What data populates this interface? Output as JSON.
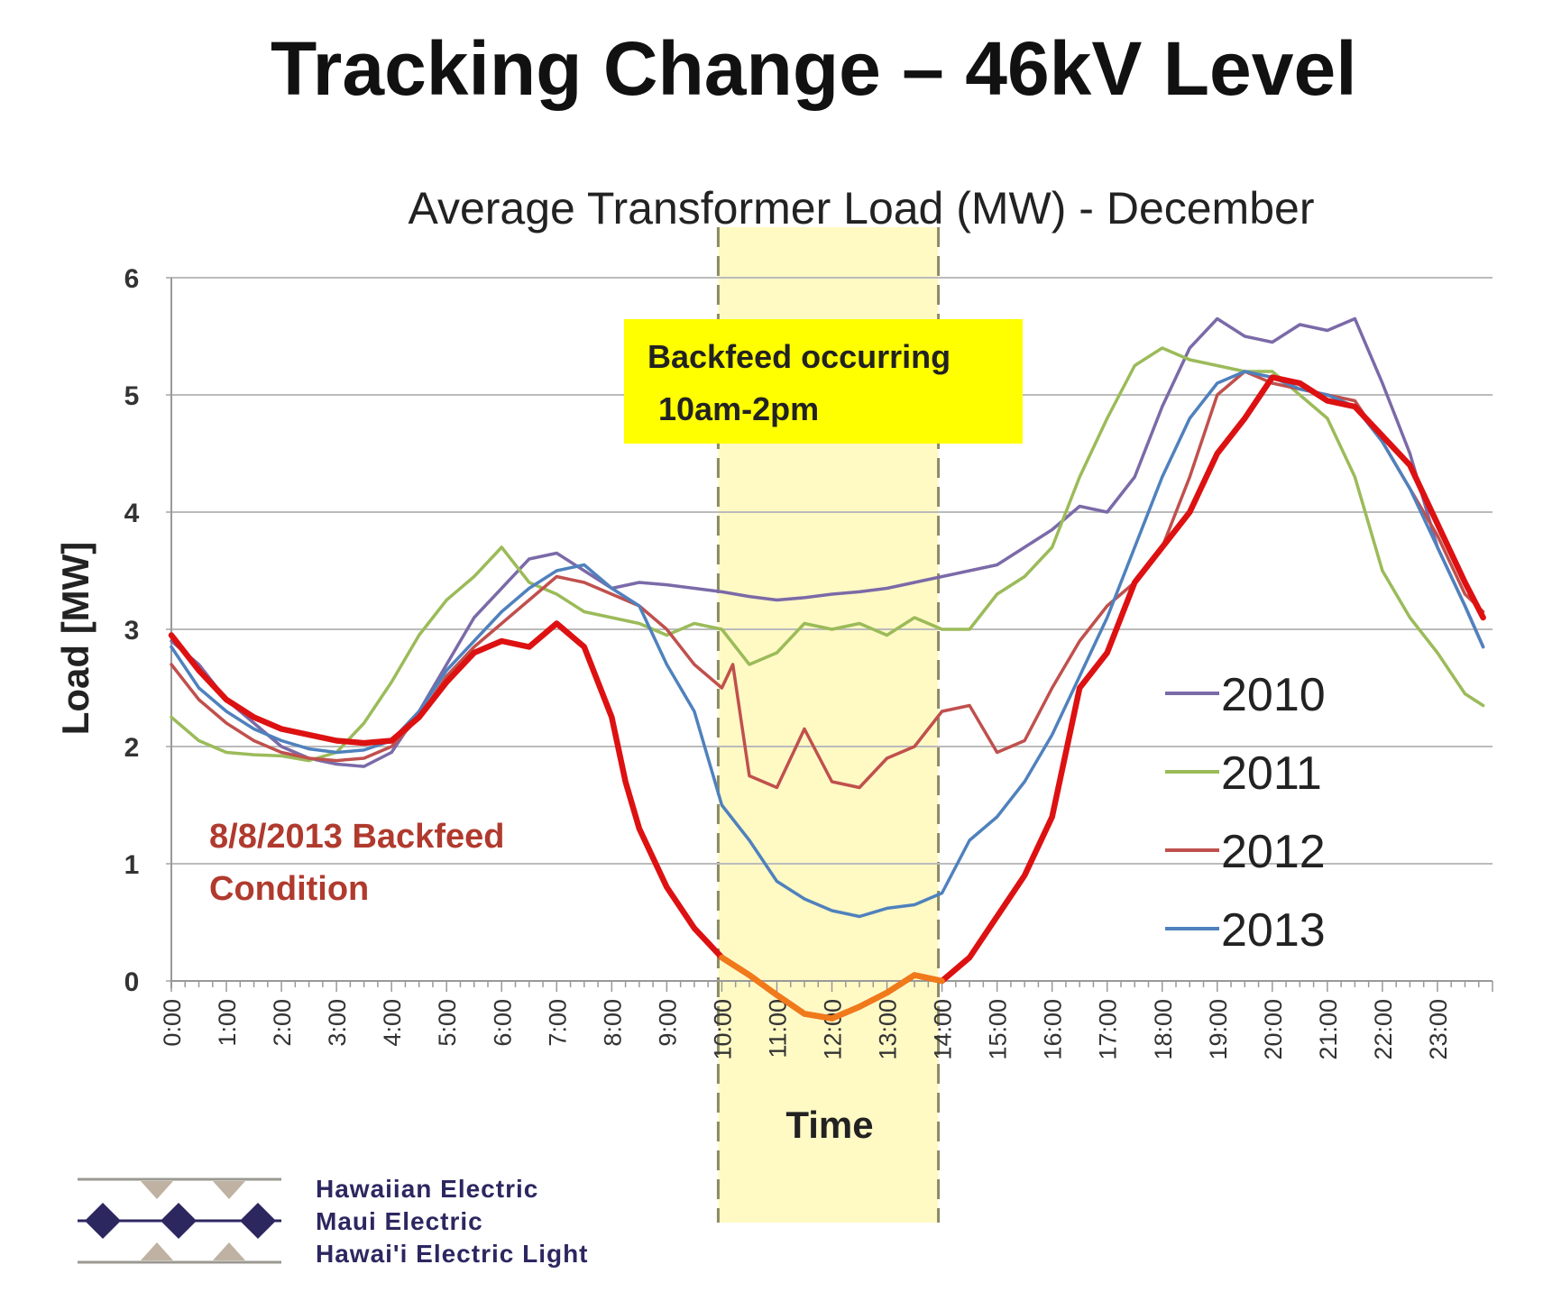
{
  "slide_title": "Tracking Change – 46kV Level",
  "colors": {
    "2010": "#7b6aa8",
    "2011": "#9bbb59",
    "2012": "#c0504d",
    "2013": "#4f81bd",
    "backfeed": "#dd1111",
    "backfeed_dip": "#f07a1a",
    "highlight": "#fff9c4",
    "annotation_box": "#ffff00",
    "grid": "#bbbbbb"
  },
  "annotations": {
    "backfeed_box_line1": "Backfeed occurring",
    "backfeed_box_line2": "10am-2pm",
    "condition_line1": "8/8/2013 Backfeed",
    "condition_line2": "Condition"
  },
  "logo": {
    "lines": [
      "Hawaiian Electric",
      "Maui Electric",
      "Hawai'i Electric Light"
    ]
  },
  "chart_data": {
    "type": "line",
    "title": "Average Transformer Load (MW) - December",
    "xlabel": "Time",
    "ylabel": "Load [MW]",
    "ylim": [
      0,
      6
    ],
    "yticks": [
      "0",
      "1",
      "2",
      "3",
      "4",
      "5",
      "6"
    ],
    "xlim": [
      0,
      23.83
    ],
    "categories": [
      "0:00",
      "1:00",
      "2:00",
      "3:00",
      "4:00",
      "5:00",
      "6:00",
      "7:00",
      "8:00",
      "9:00",
      "10:00",
      "11:00",
      "12:00",
      "13:00",
      "14:00",
      "15:00",
      "16:00",
      "17:00",
      "18:00",
      "19:00",
      "20:00",
      "21:00",
      "22:00",
      "23:00"
    ],
    "highlight_range_hours": [
      10,
      14
    ],
    "grid": true,
    "legend_position": "right",
    "series": [
      {
        "name": "2010",
        "x": [
          0,
          0.5,
          1,
          1.5,
          2,
          2.5,
          3,
          3.5,
          4,
          4.5,
          5,
          5.5,
          6,
          6.5,
          7,
          7.5,
          8,
          8.5,
          9,
          9.5,
          10,
          10.5,
          11,
          11.5,
          12,
          12.5,
          13,
          13.5,
          14,
          14.5,
          15,
          15.5,
          16,
          16.5,
          17,
          17.5,
          18,
          18.5,
          19,
          19.5,
          20,
          20.5,
          21,
          21.5,
          22,
          22.5,
          23,
          23.5,
          23.83
        ],
        "values": [
          2.9,
          2.7,
          2.4,
          2.2,
          2.0,
          1.9,
          1.85,
          1.83,
          1.95,
          2.3,
          2.7,
          3.1,
          3.35,
          3.6,
          3.65,
          3.5,
          3.35,
          3.4,
          3.38,
          3.35,
          3.32,
          3.28,
          3.25,
          3.27,
          3.3,
          3.32,
          3.35,
          3.4,
          3.45,
          3.5,
          3.55,
          3.7,
          3.85,
          4.05,
          4.0,
          4.3,
          4.9,
          5.4,
          5.65,
          5.5,
          5.45,
          5.6,
          5.55,
          5.65,
          5.1,
          4.5,
          3.7,
          3.2,
          2.85
        ]
      },
      {
        "name": "2011",
        "x": [
          0,
          0.5,
          1,
          1.5,
          2,
          2.5,
          3,
          3.5,
          4,
          4.5,
          5,
          5.5,
          6,
          6.5,
          7,
          7.5,
          8,
          8.5,
          9,
          9.5,
          10,
          10.5,
          11,
          11.5,
          12,
          12.5,
          13,
          13.5,
          14,
          14.5,
          15,
          15.5,
          16,
          16.5,
          17,
          17.5,
          18,
          18.5,
          19,
          19.5,
          20,
          20.5,
          21,
          21.5,
          22,
          22.5,
          23,
          23.5,
          23.83
        ],
        "values": [
          2.25,
          2.05,
          1.95,
          1.93,
          1.92,
          1.88,
          1.95,
          2.2,
          2.55,
          2.95,
          3.25,
          3.45,
          3.7,
          3.4,
          3.3,
          3.15,
          3.1,
          3.05,
          2.95,
          3.05,
          3.0,
          2.7,
          2.8,
          3.05,
          3.0,
          3.05,
          2.95,
          3.1,
          3.0,
          3.0,
          3.3,
          3.45,
          3.7,
          4.3,
          4.8,
          5.25,
          5.4,
          5.3,
          5.25,
          5.2,
          5.2,
          5.0,
          4.8,
          4.3,
          3.5,
          3.1,
          2.8,
          2.45,
          2.35
        ]
      },
      {
        "name": "2012",
        "x": [
          0,
          0.5,
          1,
          1.5,
          2,
          2.5,
          3,
          3.5,
          4,
          4.5,
          5,
          5.5,
          6,
          6.5,
          7,
          7.5,
          8,
          8.5,
          9,
          9.5,
          10,
          10.2,
          10.5,
          11,
          11.5,
          12,
          12.5,
          13,
          13.5,
          14,
          14.5,
          15,
          15.5,
          16,
          16.5,
          17,
          17.5,
          18,
          18.5,
          19,
          19.5,
          20,
          20.5,
          21,
          21.5,
          22,
          22.5,
          23,
          23.5,
          23.83
        ],
        "values": [
          2.7,
          2.4,
          2.2,
          2.05,
          1.95,
          1.9,
          1.88,
          1.9,
          2.0,
          2.25,
          2.6,
          2.85,
          3.05,
          3.25,
          3.45,
          3.4,
          3.3,
          3.2,
          3.0,
          2.7,
          2.5,
          2.7,
          1.75,
          1.65,
          2.15,
          1.7,
          1.65,
          1.9,
          2.0,
          2.3,
          2.35,
          1.95,
          2.05,
          2.5,
          2.9,
          3.2,
          3.4,
          3.7,
          4.3,
          5.0,
          5.2,
          5.1,
          5.05,
          5.0,
          4.95,
          4.6,
          4.2,
          3.8,
          3.3,
          3.15
        ]
      },
      {
        "name": "2013",
        "x": [
          0,
          0.5,
          1,
          1.5,
          2,
          2.5,
          3,
          3.5,
          4,
          4.5,
          5,
          5.5,
          6,
          6.5,
          7,
          7.5,
          8,
          8.5,
          9,
          9.5,
          10,
          10.5,
          11,
          11.5,
          12,
          12.5,
          13,
          13.5,
          14,
          14.5,
          15,
          15.5,
          16,
          16.5,
          17,
          17.5,
          18,
          18.5,
          19,
          19.5,
          20,
          20.5,
          21,
          21.5,
          22,
          22.5,
          23,
          23.5,
          23.83
        ],
        "values": [
          2.85,
          2.5,
          2.3,
          2.15,
          2.05,
          1.98,
          1.95,
          1.97,
          2.05,
          2.3,
          2.65,
          2.9,
          3.15,
          3.35,
          3.5,
          3.55,
          3.35,
          3.2,
          2.7,
          2.3,
          1.5,
          1.2,
          0.85,
          0.7,
          0.6,
          0.55,
          0.62,
          0.65,
          0.75,
          1.2,
          1.4,
          1.7,
          2.1,
          2.6,
          3.1,
          3.7,
          4.3,
          4.8,
          5.1,
          5.2,
          5.15,
          5.05,
          5.0,
          4.9,
          4.6,
          4.2,
          3.7,
          3.2,
          2.85
        ]
      },
      {
        "name": "8/8/2013 Backfeed",
        "x": [
          0,
          0.5,
          1,
          1.5,
          2,
          2.5,
          3,
          3.5,
          4,
          4.5,
          5,
          5.5,
          6,
          6.5,
          7,
          7.5,
          8,
          8.25,
          8.5,
          9,
          9.5,
          10,
          10.5,
          11,
          11.5,
          12,
          12.5,
          13,
          13.5,
          14,
          14.5,
          15,
          15.5,
          16,
          16.5,
          17,
          17.5,
          18,
          18.5,
          19,
          19.5,
          20,
          20.5,
          21,
          21.5,
          22,
          22.5,
          23,
          23.5,
          23.83
        ],
        "values": [
          2.95,
          2.65,
          2.4,
          2.25,
          2.15,
          2.1,
          2.05,
          2.03,
          2.05,
          2.25,
          2.55,
          2.8,
          2.9,
          2.85,
          3.05,
          2.85,
          2.25,
          1.7,
          1.3,
          0.8,
          0.45,
          0.2,
          0.05,
          -0.12,
          -0.28,
          -0.32,
          -0.22,
          -0.1,
          0.05,
          0.0,
          0.2,
          0.55,
          0.9,
          1.4,
          2.5,
          2.8,
          3.4,
          3.7,
          4.0,
          4.5,
          4.8,
          5.15,
          5.1,
          4.95,
          4.9,
          4.65,
          4.4,
          3.9,
          3.4,
          3.1
        ]
      }
    ]
  }
}
